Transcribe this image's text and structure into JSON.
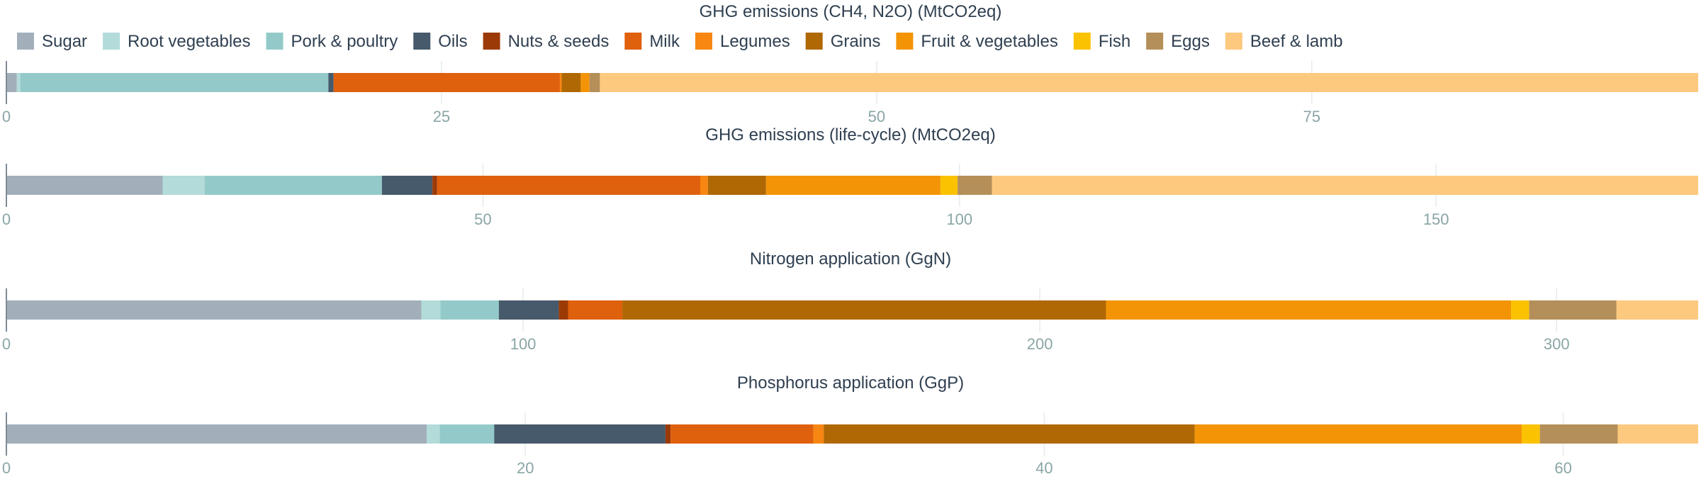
{
  "chart_data": {
    "type": "bar",
    "orientation": "horizontal-stacked",
    "legend": {
      "placement": "top",
      "entries": [
        {
          "name": "Sugar",
          "color": "#a2afbb"
        },
        {
          "name": "Root vegetables",
          "color": "#b2dbd9"
        },
        {
          "name": "Pork & poultry",
          "color": "#93cac9"
        },
        {
          "name": "Oils",
          "color": "#465a6c"
        },
        {
          "name": "Nuts & seeds",
          "color": "#9c3a07"
        },
        {
          "name": "Milk",
          "color": "#df600d"
        },
        {
          "name": "Legumes",
          "color": "#f78612"
        },
        {
          "name": "Grains",
          "color": "#b06804"
        },
        {
          "name": "Fruit & vegetables",
          "color": "#f39407"
        },
        {
          "name": "Fish",
          "color": "#fbc202"
        },
        {
          "name": "Eggs",
          "color": "#b48f59"
        },
        {
          "name": "Beef & lamb",
          "color": "#fdc97e"
        }
      ]
    },
    "panels": [
      {
        "title": "GHG emissions (CH4, N2O) (MtCO2eq)",
        "xlim": [
          0,
          97.2
        ],
        "ticks": [
          0,
          25,
          50,
          75
        ],
        "grid": true,
        "values": [
          0.6,
          0.2,
          17.7,
          0.3,
          0.0,
          13.0,
          0.1,
          1.1,
          0.5,
          0.0,
          0.6,
          63.1
        ]
      },
      {
        "title": "GHG emissions (life-cycle) (MtCO2eq)",
        "xlim": [
          0,
          177.5
        ],
        "ticks": [
          0,
          50,
          100,
          150
        ],
        "grid": true,
        "values": [
          16.4,
          4.4,
          18.6,
          5.3,
          0.5,
          27.6,
          0.8,
          6.1,
          18.3,
          1.8,
          3.6,
          74.1
        ]
      },
      {
        "title": "Nitrogen application (GgN)",
        "xlim": [
          0,
          327.4
        ],
        "ticks": [
          0,
          100,
          200,
          300
        ],
        "grid": true,
        "values": [
          80.3,
          3.7,
          11.3,
          11.6,
          1.8,
          10.5,
          0.0,
          93.6,
          78.4,
          3.5,
          16.9,
          15.8
        ]
      },
      {
        "title": "Phosphorus application (GgP)",
        "xlim": [
          0,
          65.2
        ],
        "ticks": [
          0,
          20,
          40,
          60
        ],
        "grid": true,
        "values": [
          16.2,
          0.5,
          2.1,
          6.6,
          0.2,
          5.5,
          0.4,
          14.3,
          12.6,
          0.7,
          3.0,
          3.1
        ]
      }
    ]
  }
}
